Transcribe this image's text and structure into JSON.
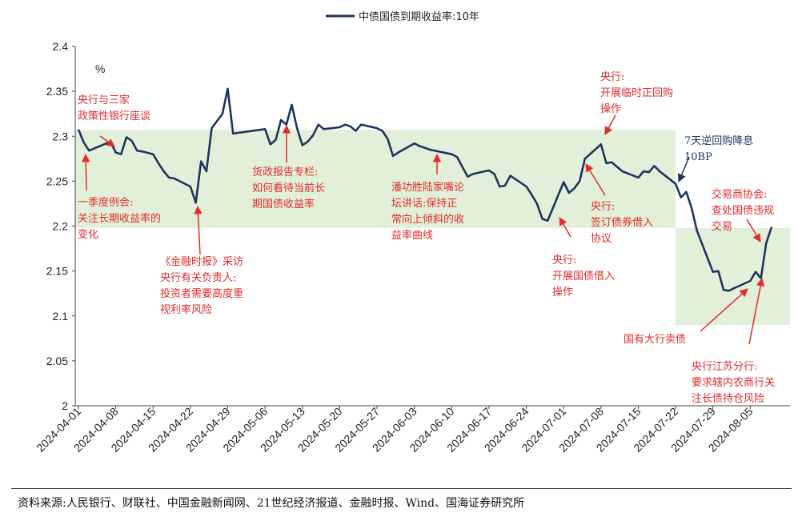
{
  "chart_data": {
    "type": "line",
    "title": "",
    "legend": [
      "中债国债到期收益率:10年"
    ],
    "ylabel": "%",
    "ylim": [
      2.0,
      2.4
    ],
    "yticks": [
      "2.4",
      "2.35",
      "2.3",
      "2.25",
      "2.2",
      "2.15",
      "2.1",
      "2.05",
      "2"
    ],
    "ytick_values": [
      2.4,
      2.35,
      2.3,
      2.25,
      2.2,
      2.15,
      2.1,
      2.05,
      2.0
    ],
    "xticks": [
      "2024-04-01",
      "2024-04-08",
      "2024-04-15",
      "2024-04-22",
      "2024-04-29",
      "2024-05-06",
      "2024-05-13",
      "2024-05-20",
      "2024-05-27",
      "2024-06-03",
      "2024-06-10",
      "2024-06-17",
      "2024-06-24",
      "2024-07-01",
      "2024-07-08",
      "2024-07-15",
      "2024-07-22",
      "2024-07-29",
      "2024-08-05"
    ],
    "xtick_days": [
      0,
      7,
      14,
      21,
      28,
      35,
      42,
      49,
      56,
      63,
      70,
      77,
      84,
      91,
      98,
      105,
      112,
      119,
      126
    ],
    "bands": [
      {
        "x0": 0,
        "x1": 112,
        "y0": 2.198,
        "y1": 2.307,
        "color": "#e2f0d9"
      },
      {
        "x0": 112,
        "x1": 133,
        "y0": 2.09,
        "y1": 2.198,
        "color": "#e2f0d9"
      }
    ],
    "series": [
      {
        "name": "中债国债到期收益率:10年",
        "color": "#1e3560",
        "x": [
          0,
          1,
          2,
          6,
          7,
          8,
          9,
          10,
          11,
          12,
          14,
          15,
          16,
          17,
          18,
          21,
          22,
          23,
          24,
          25,
          27,
          28,
          29,
          35,
          36,
          37,
          38,
          39,
          40,
          41,
          42,
          43,
          44,
          45,
          46,
          49,
          50,
          51,
          52,
          53,
          56,
          57,
          58,
          59,
          60,
          63,
          64,
          65,
          66,
          70,
          71,
          72,
          73,
          74,
          77,
          78,
          79,
          80,
          81,
          84,
          85,
          86,
          87,
          88,
          91,
          92,
          93,
          94,
          95,
          98,
          99,
          100,
          101,
          102,
          105,
          106,
          107,
          108,
          109,
          112,
          113,
          114,
          115,
          116,
          119,
          120,
          121,
          122,
          123,
          126,
          127,
          128,
          129,
          130
        ],
        "y": [
          2.3075,
          2.293,
          2.284,
          2.294,
          2.282,
          2.28,
          2.299,
          2.295,
          2.284,
          2.283,
          2.28,
          2.27,
          2.261,
          2.254,
          2.253,
          2.244,
          2.226,
          2.272,
          2.261,
          2.309,
          2.325,
          2.353,
          2.303,
          2.308,
          2.291,
          2.296,
          2.318,
          2.313,
          2.335,
          2.309,
          2.29,
          2.294,
          2.301,
          2.313,
          2.308,
          2.31,
          2.313,
          2.311,
          2.306,
          2.313,
          2.309,
          2.306,
          2.297,
          2.278,
          2.282,
          2.292,
          2.289,
          2.287,
          2.285,
          2.28,
          2.277,
          2.266,
          2.255,
          2.258,
          2.262,
          2.258,
          2.244,
          2.245,
          2.256,
          2.244,
          2.235,
          2.225,
          2.208,
          2.206,
          2.249,
          2.237,
          2.242,
          2.25,
          2.275,
          2.291,
          2.27,
          2.271,
          2.266,
          2.261,
          2.254,
          2.261,
          2.26,
          2.267,
          2.261,
          2.247,
          2.232,
          2.238,
          2.22,
          2.195,
          2.149,
          2.15,
          2.129,
          2.128,
          2.131,
          2.139,
          2.149,
          2.142,
          2.181,
          2.199
        ]
      }
    ],
    "annotations": [
      {
        "lines": [
          "央行与三家",
          "政策性银行座谈"
        ],
        "color": "red"
      },
      {
        "lines": [
          "一季度例会:",
          "关注长期收益率的",
          "变化"
        ],
        "color": "red"
      },
      {
        "lines": [
          "《金融时报》采访",
          "央行有关负责人:",
          "投资者需要高度重",
          "视利率风险"
        ],
        "color": "red"
      },
      {
        "lines": [
          "货政报告专栏:",
          "如何看待当前长",
          "期国债收益率"
        ],
        "color": "red"
      },
      {
        "lines": [
          "潘功胜陆家嘴论",
          "坛讲话:保持正",
          "常向上倾斜的收",
          "益率曲线"
        ],
        "color": "red"
      },
      {
        "lines": [
          "央行:",
          "开展国债借入",
          "操作"
        ],
        "color": "red"
      },
      {
        "lines": [
          "央行:",
          "开展临时正回购",
          "操作"
        ],
        "color": "red"
      },
      {
        "lines": [
          "央行:",
          "签订债券借入",
          "协议"
        ],
        "color": "red"
      },
      {
        "lines": [
          "7天逆回购降息",
          "10BP"
        ],
        "color": "blue"
      },
      {
        "lines": [
          "交易商协会:",
          "查处国债违规",
          "交易"
        ],
        "color": "red"
      },
      {
        "lines": [
          "国有大行卖债"
        ],
        "color": "red"
      },
      {
        "lines": [
          "央行江苏分行:",
          "要求辖内农商行关",
          "注长债持仓风险"
        ],
        "color": "red"
      }
    ],
    "source": "资料来源:人民银行、财联社、中国金融新闻网、21世纪经济报道、金融时报、Wind、国海证券研究所"
  }
}
